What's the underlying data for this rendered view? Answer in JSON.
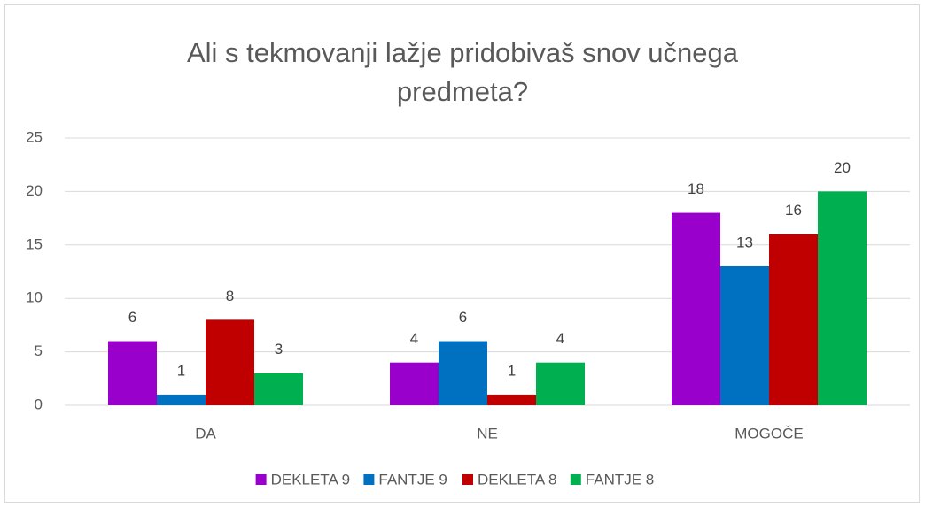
{
  "chart_data": {
    "type": "bar",
    "title": "Ali s tekmovanji lažje pridobivaš snov učnega predmeta?",
    "categories": [
      "DA",
      "NE",
      "MOGOČE"
    ],
    "series": [
      {
        "name": "DEKLETA 9",
        "color": "#9900cc",
        "values": [
          6,
          4,
          18
        ]
      },
      {
        "name": "FANTJE 9",
        "color": "#0070c0",
        "values": [
          1,
          6,
          13
        ]
      },
      {
        "name": "DEKLETA 8",
        "color": "#c00000",
        "values": [
          8,
          1,
          16
        ]
      },
      {
        "name": "FANTJE 8",
        "color": "#00b050",
        "values": [
          3,
          4,
          20
        ]
      }
    ],
    "ylim": [
      0,
      25
    ],
    "yticks": [
      0,
      5,
      10,
      15,
      20,
      25
    ],
    "grid": true,
    "legend": "bottom"
  }
}
